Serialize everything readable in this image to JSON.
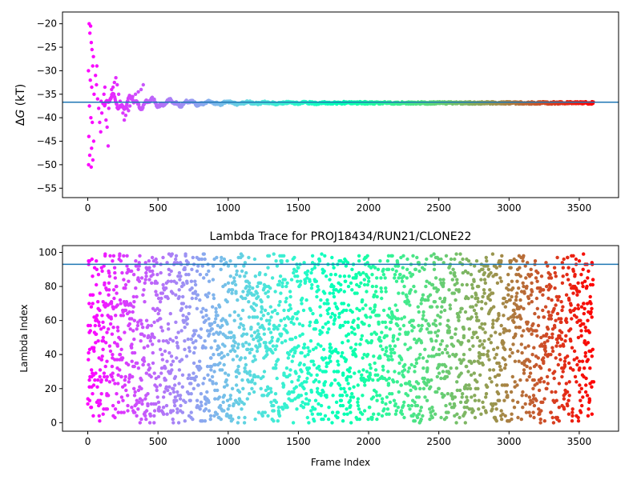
{
  "chart_data": [
    {
      "type": "scatter",
      "title": "",
      "xlabel": "",
      "ylabel_prefix": "Δ",
      "ylabel_symbol": "G",
      "ylabel_suffix": " (kT)",
      "xlim": [
        -180,
        3780
      ],
      "ylim": [
        -57,
        -17.5
      ],
      "xticks": [
        0,
        500,
        1000,
        1500,
        2000,
        2500,
        3000,
        3500
      ],
      "yticks": [
        -55,
        -50,
        -45,
        -40,
        -35,
        -30,
        -25,
        -20
      ],
      "reference_line": -36.7,
      "reference_line_color": "#1f77b4",
      "colormap": "rainbow",
      "n_frames": 3600,
      "convergence_trace": {
        "early_points": [
          [
            10,
            -20
          ],
          [
            20,
            -20.5
          ],
          [
            15,
            -22
          ],
          [
            25,
            -24
          ],
          [
            30,
            -25.5
          ],
          [
            40,
            -27
          ],
          [
            35,
            -29
          ],
          [
            5,
            -30
          ],
          [
            18,
            -32
          ],
          [
            28,
            -33.5
          ],
          [
            45,
            -35
          ],
          [
            12,
            -37.5
          ],
          [
            22,
            -40
          ],
          [
            32,
            -41
          ],
          [
            8,
            -44
          ],
          [
            42,
            -45
          ],
          [
            27,
            -46.5
          ],
          [
            14,
            -48
          ],
          [
            36,
            -49
          ],
          [
            6,
            -50
          ],
          [
            24,
            -50.5
          ],
          [
            55,
            -31
          ],
          [
            62,
            -33
          ],
          [
            70,
            -36
          ],
          [
            78,
            -38
          ],
          [
            85,
            -41
          ],
          [
            92,
            -43
          ],
          [
            100,
            -39
          ],
          [
            108,
            -37
          ],
          [
            115,
            -35
          ],
          [
            122,
            -33.5
          ],
          [
            65,
            -29
          ],
          [
            95,
            -36.5
          ],
          [
            130,
            -40.5
          ],
          [
            138,
            -42
          ],
          [
            145,
            -46
          ],
          [
            150,
            -38
          ],
          [
            160,
            -36
          ],
          [
            170,
            -34
          ],
          [
            180,
            -33.5
          ],
          [
            190,
            -32.5
          ],
          [
            200,
            -31.5
          ],
          [
            210,
            -33
          ],
          [
            220,
            -35
          ],
          [
            230,
            -36.5
          ],
          [
            240,
            -37.5
          ],
          [
            250,
            -39
          ],
          [
            260,
            -40.5
          ],
          [
            270,
            -39.5
          ],
          [
            280,
            -38
          ],
          [
            290,
            -38.5
          ],
          [
            300,
            -37.5
          ],
          [
            310,
            -36
          ],
          [
            320,
            -35.5
          ],
          [
            340,
            -35
          ],
          [
            360,
            -34.5
          ],
          [
            380,
            -34
          ],
          [
            395,
            -33
          ]
        ],
        "late_mean": -36.7
      },
      "tick_format": "plain"
    },
    {
      "type": "scatter",
      "title": "Lambda Trace for PROJ18434/RUN21/CLONE22",
      "xlabel": "Frame Index",
      "ylabel": "Lambda Index",
      "xlim": [
        -180,
        3780
      ],
      "ylim": [
        -5,
        104
      ],
      "xticks": [
        0,
        500,
        1000,
        1500,
        2000,
        2500,
        3000,
        3500
      ],
      "yticks": [
        0,
        20,
        40,
        60,
        80,
        100
      ],
      "reference_line": 93,
      "reference_line_color": "#1f77b4",
      "colormap": "rainbow",
      "lambda_range": [
        0,
        99
      ],
      "n_points": 3000,
      "frame_range": [
        0,
        3600
      ]
    }
  ],
  "colors": {
    "reference_line": "#1f77b4",
    "frame": "#000000",
    "background": "#ffffff"
  }
}
